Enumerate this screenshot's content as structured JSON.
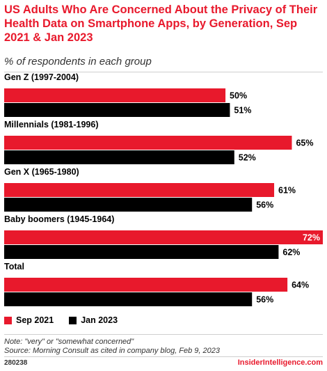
{
  "chart_data": {
    "type": "bar",
    "orientation": "horizontal",
    "title": "US Adults Who Are Concerned About the Privacy of Their Health Data on Smartphone Apps, by Generation, Sep 2021 & Jan 2023",
    "subtitle": "% of respondents in each group",
    "categories": [
      "Gen Z (1997-2004)",
      "Millennials (1981-1996)",
      "Gen X (1965-1980)",
      "Baby boomers (1945-1964)",
      "Total"
    ],
    "series": [
      {
        "name": "Sep 2021",
        "color": "#e8192c",
        "values": [
          50,
          65,
          61,
          72,
          64
        ]
      },
      {
        "name": "Jan 2023",
        "color": "#000000",
        "values": [
          51,
          52,
          56,
          62,
          56
        ]
      }
    ],
    "value_suffix": "%",
    "xlim": [
      0,
      72
    ],
    "legend_position": "bottom-left",
    "grid": false
  },
  "notes": {
    "note": "Note: \"very\" or \"somewhat concerned\"",
    "source": "Source: Morning Consult as cited in company blog, Feb 9, 2023"
  },
  "footer": {
    "chart_id": "280238",
    "brand": "InsiderIntelligence.com"
  }
}
